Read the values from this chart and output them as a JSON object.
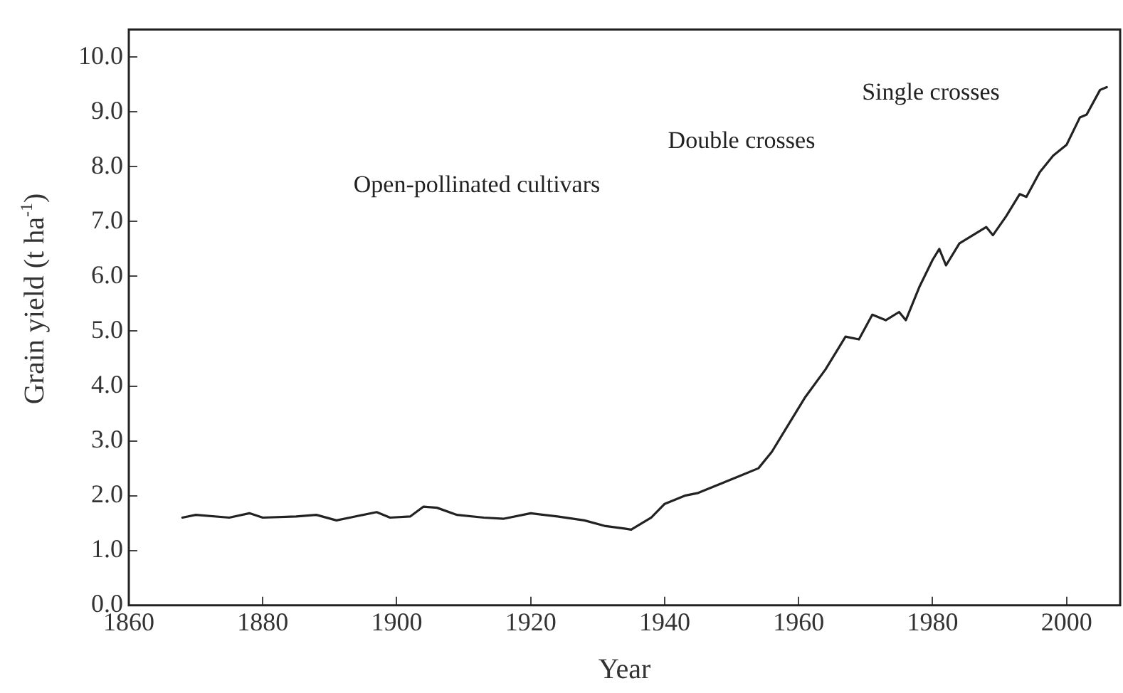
{
  "chart_data": {
    "type": "line",
    "xlabel": "Year",
    "ylabel": "Grain yield (t ha$^{-1}$)",
    "x": [
      1868,
      1870,
      1875,
      1878,
      1880,
      1885,
      1888,
      1891,
      1893,
      1897,
      1899,
      1902,
      1904,
      1906,
      1909,
      1913,
      1916,
      1920,
      1924,
      1928,
      1931,
      1934,
      1935,
      1938,
      1940,
      1943,
      1945,
      1948,
      1951,
      1954,
      1956,
      1958,
      1961,
      1964,
      1966,
      1967,
      1969,
      1971,
      1973,
      1975,
      1976,
      1978,
      1980,
      1981,
      1982,
      1984,
      1986,
      1988,
      1989,
      1991,
      1993,
      1994,
      1996,
      1998,
      2000,
      2002,
      2003,
      2005,
      2006
    ],
    "series": [
      {
        "color": "#222222",
        "values": [
          1.6,
          1.65,
          1.6,
          1.68,
          1.6,
          1.62,
          1.65,
          1.55,
          1.6,
          1.7,
          1.6,
          1.62,
          1.8,
          1.78,
          1.65,
          1.6,
          1.58,
          1.68,
          1.62,
          1.55,
          1.45,
          1.4,
          1.38,
          1.6,
          1.85,
          2.0,
          2.05,
          2.2,
          2.35,
          2.5,
          2.8,
          3.2,
          3.8,
          4.3,
          4.7,
          4.9,
          4.85,
          5.3,
          5.2,
          5.35,
          5.2,
          5.8,
          6.3,
          6.5,
          6.2,
          6.6,
          6.75,
          6.9,
          6.75,
          7.1,
          7.5,
          7.45,
          7.9,
          8.2,
          8.4,
          8.9,
          8.95,
          9.4,
          9.45
        ]
      }
    ],
    "xlim": [
      1860,
      2008
    ],
    "xticks": [
      1860,
      1880,
      1900,
      1920,
      1940,
      1960,
      1980,
      2000
    ],
    "ylim": [
      0,
      10.5
    ],
    "yticks": [
      {
        "value": 0,
        "label": "0.0"
      },
      {
        "value": 1,
        "label": "1.0"
      },
      {
        "value": 2,
        "label": "2.0"
      },
      {
        "value": 3,
        "label": "3.0"
      },
      {
        "value": 4,
        "label": "4.0"
      },
      {
        "value": 5,
        "label": "5.0"
      },
      {
        "value": 6,
        "label": "6.0"
      },
      {
        "value": 7,
        "label": "7.0"
      },
      {
        "value": 8,
        "label": "8.0"
      },
      {
        "value": 9,
        "label": "9.0"
      },
      {
        "value": 10,
        "label": "10.0"
      }
    ],
    "annotations": [
      "Open-pollinated cultivars",
      "Double crosses",
      "Single crosses"
    ],
    "grid": false,
    "legend": false,
    "marker": "none",
    "line_style": "solid"
  }
}
